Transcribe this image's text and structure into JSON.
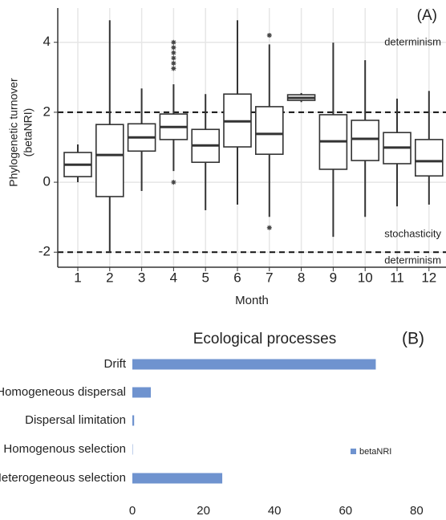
{
  "chart_data": [
    {
      "type": "box",
      "ylabel": [
        "Phylogenetic turnover",
        "(betaNRI)"
      ],
      "xlabel": "Month",
      "categories": [
        "1",
        "2",
        "3",
        "4",
        "5",
        "6",
        "7",
        "8",
        "9",
        "10",
        "11",
        "12"
      ],
      "boxes": [
        {
          "min": 0,
          "q1": 0.16,
          "median": 0.5,
          "q3": 0.85,
          "max": 1.08,
          "outliers": []
        },
        {
          "min": -2.0,
          "q1": -0.41,
          "median": 0.78,
          "q3": 1.65,
          "max": 4.63,
          "outliers": []
        },
        {
          "min": -0.25,
          "q1": 0.89,
          "median": 1.28,
          "q3": 1.67,
          "max": 2.68,
          "outliers": []
        },
        {
          "min": 0.32,
          "q1": 1.22,
          "median": 1.58,
          "q3": 1.95,
          "max": 2.8,
          "outliers": [
            4.0,
            3.85,
            3.7,
            3.55,
            3.4,
            3.25,
            0.0
          ]
        },
        {
          "min": -0.8,
          "q1": 0.57,
          "median": 1.05,
          "q3": 1.51,
          "max": 2.52,
          "outliers": []
        },
        {
          "min": -0.64,
          "q1": 1.01,
          "median": 1.74,
          "q3": 2.52,
          "max": 4.63,
          "outliers": []
        },
        {
          "min": -0.99,
          "q1": 0.8,
          "median": 1.38,
          "q3": 2.16,
          "max": 3.94,
          "outliers": [
            4.2,
            -1.3
          ]
        },
        {
          "min": 2.29,
          "q1": 2.34,
          "median": 2.41,
          "q3": 2.5,
          "max": 2.55,
          "outliers": []
        },
        {
          "min": -1.56,
          "q1": 0.37,
          "median": 1.17,
          "q3": 1.93,
          "max": 3.99,
          "outliers": []
        },
        {
          "min": -0.99,
          "q1": 0.62,
          "median": 1.24,
          "q3": 1.77,
          "max": 3.49,
          "outliers": []
        },
        {
          "min": -0.69,
          "q1": 0.53,
          "median": 0.99,
          "q3": 1.42,
          "max": 2.39,
          "outliers": []
        },
        {
          "min": -0.64,
          "q1": 0.18,
          "median": 0.6,
          "q3": 1.22,
          "max": 2.61,
          "outliers": []
        }
      ],
      "ylim": [
        -2.43,
        4.98
      ],
      "yticks": [
        -2,
        0,
        2,
        4
      ],
      "grid": true,
      "hlines": [
        2,
        -2
      ],
      "annotations": [
        "(A)",
        "determinism",
        "stochasticity",
        "determinism"
      ]
    },
    {
      "type": "bar",
      "title": "Ecological processes",
      "label": "(B)",
      "categories": [
        "Drift",
        "Homogeneous dispersal",
        "Dispersal limitation",
        "Homogenous selection",
        "Heterogeneous selection"
      ],
      "series": [
        {
          "name": "betaNRI",
          "color": "#6f93cf",
          "values": [
            68.5,
            5.2,
            0.5,
            0.1,
            25.3
          ]
        }
      ],
      "xlim": [
        0,
        88
      ],
      "xticks": [
        0,
        20,
        40,
        60,
        80
      ]
    }
  ]
}
